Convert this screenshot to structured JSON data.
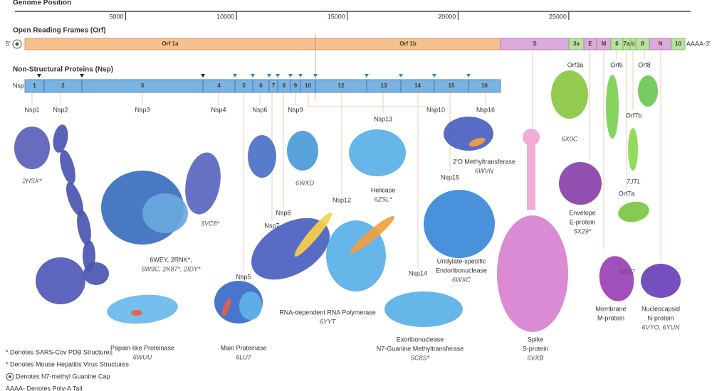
{
  "genome_axis": {
    "title": "Genome Position",
    "range": [
      0,
      30500
    ],
    "ticks": [
      5000,
      10000,
      15000,
      20000,
      25000
    ]
  },
  "orf": {
    "title": "Open Reading Frames (Orf)",
    "five_prime": "5'",
    "three_prime": "AAAA-3'",
    "segments": [
      "Orf 1a",
      "Orf 1b",
      "S",
      "3a",
      "E",
      "M",
      "6",
      "7a",
      "b",
      "8",
      "N",
      "10"
    ]
  },
  "nsp": {
    "title": "Non-Structural Proteins (Nsp)",
    "row_label": "Nsp",
    "segments": [
      "1",
      "2",
      "3",
      "4",
      "5",
      "6",
      "7",
      "8",
      "9",
      "10",
      "12",
      "13",
      "14",
      "15",
      "16"
    ]
  },
  "proteins": [
    {
      "name": "Nsp1",
      "caption": [
        "2HSX*"
      ]
    },
    {
      "name": "Nsp2"
    },
    {
      "name": "Nsp3",
      "caption": [
        "6WEY, 2RNK*,",
        "6W9C, 2K87*, 2IDY*"
      ]
    },
    {
      "name": "Nsp4",
      "caption": [
        "3VC8*"
      ]
    },
    {
      "name": "Nsp5",
      "caption": [
        "Main Proteinase",
        "6LU7"
      ]
    },
    {
      "name": "Nsp6"
    },
    {
      "name": "Nsp7"
    },
    {
      "name": "Nsp8"
    },
    {
      "name": "Nsp9",
      "caption": [
        "6WXD"
      ]
    },
    {
      "name": "Nsp10"
    },
    {
      "name": "Nsp12",
      "caption": [
        "RNA-dependent RNA Polymerase",
        "6YYT"
      ]
    },
    {
      "name": "Nsp13",
      "caption": [
        "Helicase",
        "6ZSL*"
      ]
    },
    {
      "name": "Nsp14",
      "caption": [
        "Exoribonuclease",
        "N7-Guanine Methyltransferase",
        "5C8S*"
      ]
    },
    {
      "name": "Nsp15",
      "caption": [
        "Uridylate-specific",
        "Endoribonuclease",
        "6WXC"
      ]
    },
    {
      "name": "Nsp16",
      "caption": [
        "2'O Methyltransferase",
        "6WVN"
      ]
    },
    {
      "caption": [
        "Papain-like Proteinase",
        "6WUU"
      ]
    },
    {
      "name": "Orf3a",
      "caption": [
        "6X0C"
      ]
    },
    {
      "name": "Orf6"
    },
    {
      "name": "Orf8"
    },
    {
      "name": "Orf7b",
      "caption": [
        "7JTL"
      ]
    },
    {
      "name": "Orf7a",
      "caption": [
        "6W37"
      ]
    },
    {
      "caption": [
        "Spike",
        "S-protein",
        "6VXB"
      ]
    },
    {
      "caption": [
        "Envelope",
        "E-protein",
        "5X29*"
      ]
    },
    {
      "caption": [
        "Membrane",
        "M-protein"
      ]
    },
    {
      "caption": [
        "Nucleocapsid",
        "N-protein",
        "6VYO, 6YUN"
      ]
    }
  ],
  "legend": [
    "* Denotes SARS-Cov PDB Structures",
    "* Denotes Mouse Hepatitis Virus Structures",
    "Denotes N7-methyl Guanine Cap",
    "AAAA- Denotes Poly-A Tail"
  ]
}
